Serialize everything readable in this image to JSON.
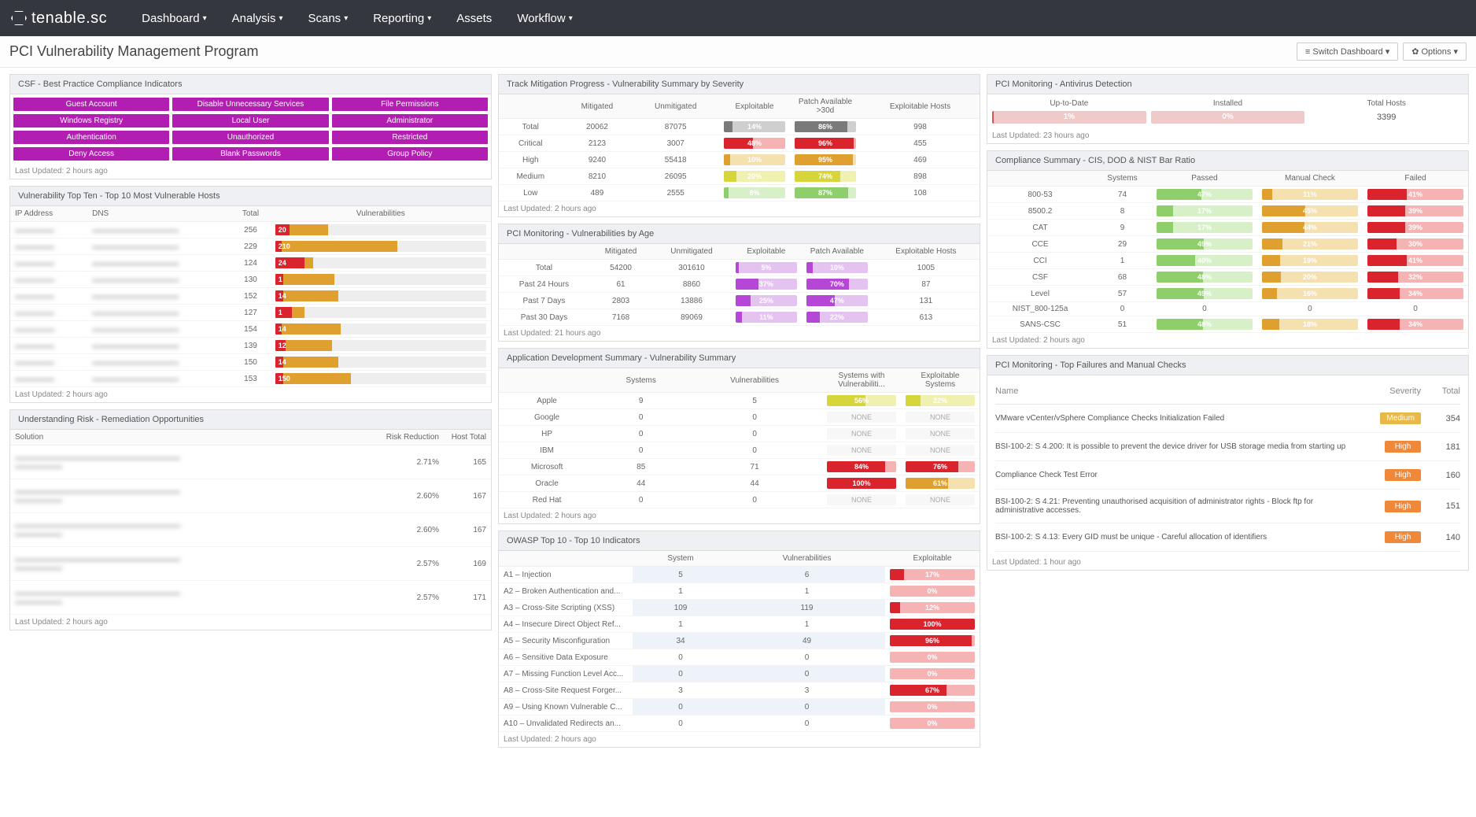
{
  "brand": "tenable.sc",
  "nav": [
    "Dashboard",
    "Analysis",
    "Scans",
    "Reporting",
    "Assets",
    "Workflow"
  ],
  "nav_caret": [
    true,
    true,
    true,
    true,
    false,
    true
  ],
  "page_title": "PCI Vulnerability Management Program",
  "btn_switch": "Switch Dashboard",
  "btn_options": "Options",
  "colors": {
    "purple": "#b21eb2",
    "gray": "#7a7a7a",
    "red": "#d9242e",
    "redlt": "#f5b3b3",
    "orange": "#e0a030",
    "orangelt": "#f5e0b0",
    "green": "#8fcf6b",
    "greenlt": "#d7f0c7",
    "violet": "#b646d6",
    "violetlt": "#e5c3f0",
    "yellow": "#d6d63c",
    "yellowlt": "#f0f0b0",
    "sevHigh": "#f0883a",
    "sevMed": "#e8b848"
  },
  "csf": {
    "title": "CSF - Best Practice Compliance Indicators",
    "items": [
      "Guest Account",
      "Disable Unnecessary Services",
      "File Permissions",
      "Windows Registry",
      "Local User",
      "Administrator",
      "Authentication",
      "Unauthorized",
      "Restricted",
      "Deny Access",
      "Blank Passwords",
      "Group Policy"
    ],
    "updated": "Last Updated: 2 hours ago"
  },
  "topten": {
    "title": "Vulnerability Top Ten - Top 10 Most Vulnerable Hosts",
    "cols": [
      "IP Address",
      "DNS",
      "Total",
      "Vulnerabilities"
    ],
    "rows": [
      {
        "total": 256,
        "crit": 7,
        "high": 18,
        "label": "20"
      },
      {
        "total": 229,
        "crit": 3,
        "high": 55,
        "label": "210"
      },
      {
        "total": 124,
        "crit": 14,
        "high": 4,
        "label": "24"
      },
      {
        "total": 130,
        "crit": 4,
        "high": 24,
        "label": "1"
      },
      {
        "total": 152,
        "crit": 4,
        "high": 26,
        "label": "14"
      },
      {
        "total": 127,
        "crit": 8,
        "high": 6,
        "label": "1"
      },
      {
        "total": 154,
        "crit": 3,
        "high": 28,
        "label": "14"
      },
      {
        "total": 139,
        "crit": 5,
        "high": 22,
        "label": "12"
      },
      {
        "total": 150,
        "crit": 4,
        "high": 26,
        "label": "14"
      },
      {
        "total": 153,
        "crit": 4,
        "high": 32,
        "label": "150"
      }
    ],
    "updated": "Last Updated: 2 hours ago"
  },
  "risk": {
    "title": "Understanding Risk - Remediation Opportunities",
    "cols": [
      "Solution",
      "Risk Reduction",
      "Host Total"
    ],
    "rows": [
      {
        "rr": "2.71%",
        "ht": 165
      },
      {
        "rr": "2.60%",
        "ht": 167
      },
      {
        "rr": "2.60%",
        "ht": 167
      },
      {
        "rr": "2.57%",
        "ht": 169
      },
      {
        "rr": "2.57%",
        "ht": 171
      }
    ],
    "updated": "Last Updated: 2 hours ago"
  },
  "mitig": {
    "title": "Track Mitigation Progress - Vulnerability Summary by Severity",
    "cols": [
      "",
      "Mitigated",
      "Unmitigated",
      "Exploitable",
      "Patch Available >30d",
      "Exploitable Hosts"
    ],
    "rows": [
      {
        "name": "Total",
        "mit": 20062,
        "unm": 87075,
        "ex": {
          "v": "14%",
          "p": 14,
          "c": "gray"
        },
        "pa": {
          "v": "86%",
          "p": 86,
          "c": "gray"
        },
        "eh": 998
      },
      {
        "name": "Critical",
        "mit": 2123,
        "unm": 3007,
        "ex": {
          "v": "48%",
          "p": 48,
          "c": "red"
        },
        "pa": {
          "v": "96%",
          "p": 96,
          "c": "red"
        },
        "eh": 455
      },
      {
        "name": "High",
        "mit": 9240,
        "unm": 55418,
        "ex": {
          "v": "10%",
          "p": 10,
          "c": "orange"
        },
        "pa": {
          "v": "95%",
          "p": 95,
          "c": "orange"
        },
        "eh": 469
      },
      {
        "name": "Medium",
        "mit": 8210,
        "unm": 26095,
        "ex": {
          "v": "20%",
          "p": 20,
          "c": "yellow"
        },
        "pa": {
          "v": "74%",
          "p": 74,
          "c": "yellow"
        },
        "eh": 898
      },
      {
        "name": "Low",
        "mit": 489,
        "unm": 2555,
        "ex": {
          "v": "8%",
          "p": 8,
          "c": "green"
        },
        "pa": {
          "v": "87%",
          "p": 87,
          "c": "green"
        },
        "eh": 108
      }
    ],
    "updated": "Last Updated: 2 hours ago"
  },
  "age": {
    "title": "PCI Monitoring - Vulnerabilities by Age",
    "cols": [
      "",
      "Mitigated",
      "Unmitigated",
      "Exploitable",
      "Patch Available",
      "Exploitable Hosts"
    ],
    "rows": [
      {
        "name": "Total",
        "mit": 54200,
        "unm": 301610,
        "ex": {
          "v": "5%",
          "p": 5
        },
        "pa": {
          "v": "10%",
          "p": 10
        },
        "eh": 1005
      },
      {
        "name": "Past 24 Hours",
        "mit": 61,
        "unm": 8860,
        "ex": {
          "v": "37%",
          "p": 37
        },
        "pa": {
          "v": "70%",
          "p": 70
        },
        "eh": 87
      },
      {
        "name": "Past 7 Days",
        "mit": 2803,
        "unm": 13886,
        "ex": {
          "v": "25%",
          "p": 25
        },
        "pa": {
          "v": "47%",
          "p": 47
        },
        "eh": 131
      },
      {
        "name": "Past 30 Days",
        "mit": 7168,
        "unm": 89069,
        "ex": {
          "v": "11%",
          "p": 11
        },
        "pa": {
          "v": "22%",
          "p": 22
        },
        "eh": 613
      }
    ],
    "updated": "Last Updated: 21 hours ago"
  },
  "appdev": {
    "title": "Application Development Summary - Vulnerability Summary",
    "cols": [
      "",
      "Systems",
      "Vulnerabilities",
      "Systems with Vulnerabiliti...",
      "Exploitable Systems"
    ],
    "rows": [
      {
        "name": "Apple",
        "sys": 9,
        "vul": 5,
        "sv": {
          "v": "56%",
          "p": 56,
          "c": "yellow"
        },
        "es": {
          "v": "22%",
          "p": 22,
          "c": "yellow"
        }
      },
      {
        "name": "Google",
        "sys": 0,
        "vul": 0,
        "sv": null,
        "es": null
      },
      {
        "name": "HP",
        "sys": 0,
        "vul": 0,
        "sv": null,
        "es": null
      },
      {
        "name": "IBM",
        "sys": 0,
        "vul": 0,
        "sv": null,
        "es": null
      },
      {
        "name": "Microsoft",
        "sys": 85,
        "vul": 71,
        "sv": {
          "v": "84%",
          "p": 84,
          "c": "red"
        },
        "es": {
          "v": "76%",
          "p": 76,
          "c": "red"
        }
      },
      {
        "name": "Oracle",
        "sys": 44,
        "vul": 44,
        "sv": {
          "v": "100%",
          "p": 100,
          "c": "red"
        },
        "es": {
          "v": "61%",
          "p": 61,
          "c": "orange"
        }
      },
      {
        "name": "Red Hat",
        "sys": 0,
        "vul": 0,
        "sv": null,
        "es": null
      }
    ],
    "updated": "Last Updated: 2 hours ago"
  },
  "owasp": {
    "title": "OWASP Top 10 - Top 10 Indicators",
    "cols": [
      "",
      "System",
      "Vulnerabilities",
      "Exploitable"
    ],
    "rows": [
      {
        "name": "A1 – Injection",
        "sys": 5,
        "vul": 6,
        "ex": {
          "v": "17%",
          "p": 17
        }
      },
      {
        "name": "A2 – Broken Authentication and...",
        "sys": 1,
        "vul": 1,
        "ex": {
          "v": "0%",
          "p": 0
        }
      },
      {
        "name": "A3 – Cross-Site Scripting (XSS)",
        "sys": 109,
        "vul": 119,
        "ex": {
          "v": "12%",
          "p": 12
        }
      },
      {
        "name": "A4 – Insecure Direct Object Ref...",
        "sys": 1,
        "vul": 1,
        "ex": {
          "v": "100%",
          "p": 100
        }
      },
      {
        "name": "A5 – Security Misconfiguration",
        "sys": 34,
        "vul": 49,
        "ex": {
          "v": "96%",
          "p": 96
        }
      },
      {
        "name": "A6 – Sensitive Data Exposure",
        "sys": 0,
        "vul": 0,
        "ex": {
          "v": "0%",
          "p": 0
        }
      },
      {
        "name": "A7 – Missing Function Level Acc...",
        "sys": 0,
        "vul": 0,
        "ex": {
          "v": "0%",
          "p": 0
        }
      },
      {
        "name": "A8 – Cross-Site Request Forger...",
        "sys": 3,
        "vul": 3,
        "ex": {
          "v": "67%",
          "p": 67
        }
      },
      {
        "name": "A9 – Using Known Vulnerable C...",
        "sys": 0,
        "vul": 0,
        "ex": {
          "v": "0%",
          "p": 0
        }
      },
      {
        "name": "A10 – Unvalidated Redirects an...",
        "sys": 0,
        "vul": 0,
        "ex": {
          "v": "0%",
          "p": 0
        }
      }
    ],
    "updated": "Last Updated: 2 hours ago"
  },
  "av": {
    "title": "PCI Monitoring - Antivirus Detection",
    "upd": "Up-to-Date",
    "inst": "Installed",
    "tot": "Total Hosts",
    "upd_v": "1%",
    "upd_p": 1,
    "inst_v": "0%",
    "inst_p": 0,
    "total": 3399,
    "updated": "Last Updated: 23 hours ago"
  },
  "comp": {
    "title": "Compliance Summary - CIS, DOD & NIST Bar Ratio",
    "cols": [
      "",
      "Systems",
      "Passed",
      "Manual Check",
      "Failed"
    ],
    "rows": [
      {
        "name": "800-53",
        "sys": 74,
        "p": {
          "v": "47%",
          "p": 47
        },
        "m": {
          "v": "11%",
          "p": 11
        },
        "f": {
          "v": "41%",
          "p": 41
        }
      },
      {
        "name": "8500.2",
        "sys": 8,
        "p": {
          "v": "17%",
          "p": 17
        },
        "m": {
          "v": "45%",
          "p": 45
        },
        "f": {
          "v": "39%",
          "p": 39
        }
      },
      {
        "name": "CAT",
        "sys": 9,
        "p": {
          "v": "17%",
          "p": 17
        },
        "m": {
          "v": "44%",
          "p": 44
        },
        "f": {
          "v": "39%",
          "p": 39
        }
      },
      {
        "name": "CCE",
        "sys": 29,
        "p": {
          "v": "49%",
          "p": 49
        },
        "m": {
          "v": "21%",
          "p": 21
        },
        "f": {
          "v": "30%",
          "p": 30
        }
      },
      {
        "name": "CCI",
        "sys": 1,
        "p": {
          "v": "40%",
          "p": 40
        },
        "m": {
          "v": "19%",
          "p": 19
        },
        "f": {
          "v": "41%",
          "p": 41
        }
      },
      {
        "name": "CSF",
        "sys": 68,
        "p": {
          "v": "48%",
          "p": 48
        },
        "m": {
          "v": "20%",
          "p": 20
        },
        "f": {
          "v": "32%",
          "p": 32
        }
      },
      {
        "name": "Level",
        "sys": 57,
        "p": {
          "v": "49%",
          "p": 49
        },
        "m": {
          "v": "16%",
          "p": 16
        },
        "f": {
          "v": "34%",
          "p": 34
        }
      },
      {
        "name": "NIST_800-125a",
        "sys": 0,
        "p": null,
        "m": null,
        "f": null
      },
      {
        "name": "SANS-CSC",
        "sys": 51,
        "p": {
          "v": "48%",
          "p": 48
        },
        "m": {
          "v": "18%",
          "p": 18
        },
        "f": {
          "v": "34%",
          "p": 34
        }
      }
    ],
    "updated": "Last Updated: 2 hours ago"
  },
  "fails": {
    "title": "PCI Monitoring - Top Failures and Manual Checks",
    "cols": [
      "Name",
      "Severity",
      "Total"
    ],
    "rows": [
      {
        "name": "VMware vCenter/vSphere Compliance Checks Initialization Failed",
        "sev": "Medium",
        "sevc": "sevMed",
        "tot": 354
      },
      {
        "name": "BSI-100-2: S 4.200: It is possible to prevent the device driver for USB storage media from starting up",
        "sev": "High",
        "sevc": "sevHigh",
        "tot": 181
      },
      {
        "name": "Compliance Check Test Error",
        "sev": "High",
        "sevc": "sevHigh",
        "tot": 160
      },
      {
        "name": "BSI-100-2: S 4.21: Preventing unauthorised acquisition of administrator rights - Block ftp for administrative accesses.",
        "sev": "High",
        "sevc": "sevHigh",
        "tot": 151
      },
      {
        "name": "BSI-100-2: S 4.13: Every GID must be unique - Careful allocation of identifiers",
        "sev": "High",
        "sevc": "sevHigh",
        "tot": 140
      }
    ],
    "updated": "Last Updated: 1 hour ago"
  },
  "none_label": "NONE"
}
